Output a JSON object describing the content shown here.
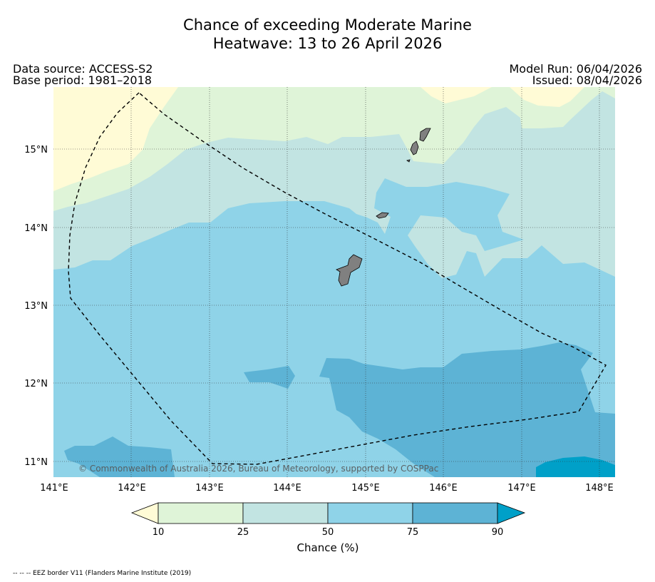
{
  "title": {
    "line1": "Chance of exceeding Moderate Marine",
    "line2": "Heatwave: 13 to 26 April 2026"
  },
  "meta": {
    "source": "Data source: ACCESS-S2",
    "base_period": "Base period: 1981–2018",
    "model_run": "Model Run: 06/04/2026",
    "issued": "Issued: 08/04/2026"
  },
  "axes": {
    "lat_labels": [
      "15°N",
      "14°N",
      "13°N",
      "12°N",
      "11°N"
    ],
    "lon_labels": [
      "141°E",
      "142°E",
      "143°E",
      "144°E",
      "145°E",
      "146°E",
      "147°E",
      "148°E"
    ]
  },
  "copyright": "© Commonwealth of Australia 2026, Bureau of Meteorology, supported by COSPPac",
  "colorbar": {
    "title": "Chance (%)",
    "ticks": [
      "10",
      "25",
      "50",
      "75",
      "90"
    ],
    "colors": {
      "below_10": "#fffbd6",
      "c10_25": "#dff4d8",
      "c25_50": "#c2e4e2",
      "c50_75": "#8fd3e8",
      "c75_90": "#5db3d5",
      "above_90": "#00a0c8"
    }
  },
  "footnote": "-- -- -- EEZ border V11 (Flanders Marine Institute (2019)",
  "islands": [
    "guam",
    "rota",
    "tinian",
    "saipan",
    "anatahan-area"
  ]
}
